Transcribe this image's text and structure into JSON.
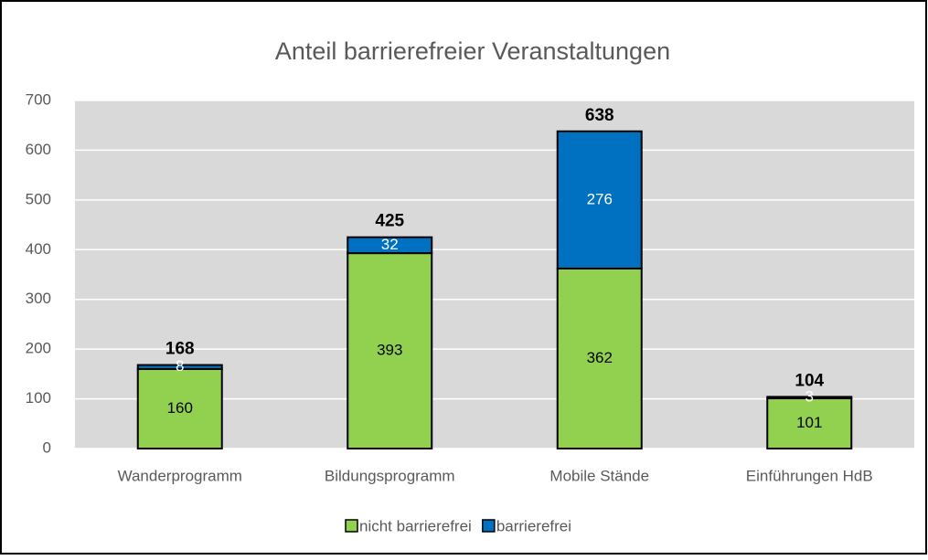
{
  "chart_data": {
    "type": "stacked_bar",
    "title": "Anteil barrierefreier Veranstaltungen",
    "categories": [
      "Wanderprogramm",
      "Bildungsprogramm",
      "Mobile Stände",
      "Einführungen HdB"
    ],
    "series": [
      {
        "name": "nicht barrierefrei",
        "color": "#92d050",
        "values": [
          160,
          393,
          362,
          101
        ]
      },
      {
        "name": "barrierefrei",
        "color": "#0070c0",
        "values": [
          8,
          32,
          276,
          3
        ]
      }
    ],
    "totals": [
      168,
      425,
      638,
      104
    ],
    "ylim": [
      0,
      700
    ],
    "yticks": [
      0,
      100,
      200,
      300,
      400,
      500,
      600,
      700
    ],
    "grid": true,
    "legend": "bottom"
  }
}
